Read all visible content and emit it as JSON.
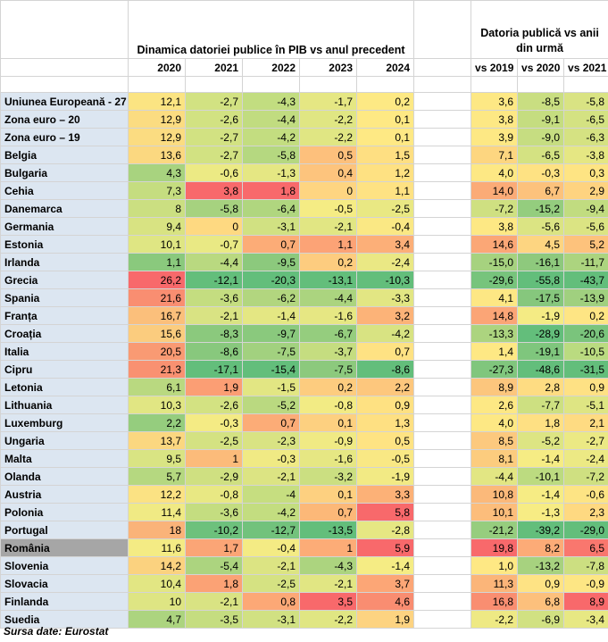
{
  "header": {
    "group1_title": "Dinamica datoriei publice în PIB vs anul precedent",
    "group2_title": "Datoria publică vs anii din urmă",
    "years": [
      "2020",
      "2021",
      "2022",
      "2023",
      "2024"
    ],
    "vs": [
      "vs 2019",
      "vs 2020",
      "vs 2021"
    ]
  },
  "rows": [
    {
      "country": "Uniunea Europeană - 27",
      "a": [
        "12,1",
        "-2,7",
        "-4,3",
        "-1,7",
        "0,2"
      ],
      "b": [
        "3,6",
        "-8,5",
        "-5,8"
      ],
      "ca": [
        "#fbe482",
        "#d2e282",
        "#c2dd80",
        "#e5e783",
        "#fde984"
      ],
      "cb": [
        "#fde884",
        "#c9de81",
        "#d9e383"
      ]
    },
    {
      "country": "Zona euro – 20",
      "a": [
        "12,9",
        "-2,6",
        "-4,4",
        "-2,2",
        "0,1"
      ],
      "b": [
        "3,8",
        "-9,1",
        "-6,5"
      ],
      "ca": [
        "#fbdc81",
        "#d2e282",
        "#c1dc80",
        "#e0e683",
        "#fee984"
      ],
      "cb": [
        "#fde884",
        "#c5dd80",
        "#d4e282"
      ]
    },
    {
      "country": "Zona euro – 19",
      "a": [
        "12,9",
        "-2,7",
        "-4,2",
        "-2,2",
        "0,1"
      ],
      "b": [
        "3,9",
        "-9,0",
        "-6,3"
      ],
      "ca": [
        "#fbdc81",
        "#d2e282",
        "#c3dd80",
        "#e0e683",
        "#fee984"
      ],
      "cb": [
        "#fde884",
        "#c6dd81",
        "#d5e282"
      ]
    },
    {
      "country": "Belgia",
      "a": [
        "13,6",
        "-2,7",
        "-5,8",
        "0,5",
        "1,5"
      ],
      "b": [
        "7,1",
        "-6,5",
        "-3,8"
      ],
      "ca": [
        "#fbd880",
        "#d2e282",
        "#b5d880",
        "#fdc07c",
        "#fedf82"
      ],
      "cb": [
        "#fdd680",
        "#d4e282",
        "#e5e783"
      ]
    },
    {
      "country": "Bulgaria",
      "a": [
        "4,3",
        "-0,6",
        "-1,3",
        "0,4",
        "1,2"
      ],
      "b": [
        "4,0",
        "-0,3",
        "0,3"
      ],
      "ca": [
        "#a8d37f",
        "#ecea84",
        "#e5e783",
        "#fdc47d",
        "#fee182"
      ],
      "cb": [
        "#fde884",
        "#fee283",
        "#fee483"
      ]
    },
    {
      "country": "Cehia",
      "a": [
        "7,3",
        "3,8",
        "1,8",
        "0",
        "1,1"
      ],
      "b": [
        "14,0",
        "6,7",
        "2,9"
      ],
      "ca": [
        "#c5dd80",
        "#f8696b",
        "#f8696b",
        "#fed581",
        "#fee283"
      ],
      "cb": [
        "#fbab77",
        "#fcc27c",
        "#fed380"
      ]
    },
    {
      "country": "Danemarca",
      "a": [
        "8",
        "-5,8",
        "-6,4",
        "-0,5",
        "-2,5"
      ],
      "b": [
        "-7,2",
        "-15,2",
        "-9,4"
      ],
      "ca": [
        "#cbdf81",
        "#a6d27f",
        "#b0d67f",
        "#f5ec84",
        "#e9e883"
      ],
      "cb": [
        "#cfe081",
        "#94cd7e",
        "#c1dc80"
      ]
    },
    {
      "country": "Germania",
      "a": [
        "9,4",
        "0",
        "-3,1",
        "-2,1",
        "-0,4"
      ],
      "b": [
        "3,8",
        "-5,6",
        "-5,6"
      ],
      "ca": [
        "#d8e382",
        "#fed981",
        "#d1e182",
        "#e1e683",
        "#fae884"
      ],
      "cb": [
        "#fde884",
        "#dbe483",
        "#dbe483"
      ]
    },
    {
      "country": "Estonia",
      "a": [
        "10,1",
        "-0,7",
        "0,7",
        "1,1",
        "3,4"
      ],
      "b": [
        "14,6",
        "4,5",
        "5,2"
      ],
      "ca": [
        "#dfe683",
        "#e9e984",
        "#fcac77",
        "#fca376",
        "#fcaf78"
      ],
      "cb": [
        "#fba776",
        "#fdd581",
        "#fdc27c"
      ]
    },
    {
      "country": "Irlanda",
      "a": [
        "1,1",
        "-4,4",
        "-9,5",
        "0,2",
        "-2,4"
      ],
      "b": [
        "-15,0",
        "-16,1",
        "-11,7"
      ],
      "ca": [
        "#8ac97d",
        "#b9d980",
        "#8cc97d",
        "#fdcc7f",
        "#eae884"
      ],
      "cb": [
        "#a6d27f",
        "#8ec97d",
        "#acd47f"
      ]
    },
    {
      "country": "Grecia",
      "a": [
        "26,2",
        "-12,1",
        "-20,3",
        "-13,1",
        "-10,3"
      ],
      "b": [
        "-29,6",
        "-55,8",
        "-43,7"
      ],
      "ca": [
        "#f8696b",
        "#63be7b",
        "#63be7b",
        "#63be7b",
        "#63be7b"
      ],
      "cb": [
        "#77c47c",
        "#63be7b",
        "#63be7b"
      ]
    },
    {
      "country": "Spania",
      "a": [
        "21,6",
        "-3,6",
        "-6,2",
        "-4,4",
        "-3,3"
      ],
      "b": [
        "4,1",
        "-17,5",
        "-13,9"
      ],
      "ca": [
        "#f98e71",
        "#c4dd80",
        "#b2d67f",
        "#abd47f",
        "#e2e683"
      ],
      "cb": [
        "#fde784",
        "#86c77d",
        "#a0d07f"
      ]
    },
    {
      "country": "Franța",
      "a": [
        "16,7",
        "-2,1",
        "-1,4",
        "-1,6",
        "3,2"
      ],
      "b": [
        "14,8",
        "-1,9",
        "0,2"
      ],
      "ca": [
        "#fbbf7b",
        "#d9e383",
        "#e4e783",
        "#e6e783",
        "#fcb378"
      ],
      "cb": [
        "#fba576",
        "#f4eb84",
        "#fee584"
      ]
    },
    {
      "country": "Croația",
      "a": [
        "15,6",
        "-8,3",
        "-9,7",
        "-6,7",
        "-4,2"
      ],
      "b": [
        "-13,3",
        "-28,9",
        "-20,6"
      ],
      "ca": [
        "#fbcc7e",
        "#8bc97d",
        "#8ac97d",
        "#95cd7e",
        "#d8e382"
      ],
      "cb": [
        "#acd47f",
        "#63be7b",
        "#7ac47c"
      ]
    },
    {
      "country": "Italia",
      "a": [
        "20,5",
        "-8,6",
        "-7,5",
        "-3,7",
        "0,7"
      ],
      "b": [
        "1,4",
        "-19,1",
        "-10,5"
      ],
      "ca": [
        "#f99a73",
        "#88c87d",
        "#a2d17f",
        "#c5dd80",
        "#fee283"
      ],
      "cb": [
        "#fee884",
        "#7fc67d",
        "#badb80"
      ]
    },
    {
      "country": "Cipru",
      "a": [
        "21,3",
        "-17,1",
        "-15,4",
        "-7,5",
        "-8,6"
      ],
      "b": [
        "-27,3",
        "-48,6",
        "-31,5"
      ],
      "ca": [
        "#f99171",
        "#63be7b",
        "#63be7b",
        "#8cc97d",
        "#63be7b"
      ],
      "cb": [
        "#80c67d",
        "#63be7b",
        "#63be7b"
      ]
    },
    {
      "country": "Letonia",
      "a": [
        "6,1",
        "1,9",
        "-1,5",
        "0,2",
        "2,2"
      ],
      "b": [
        "8,9",
        "2,8",
        "0,9"
      ],
      "ca": [
        "#b9d980",
        "#fb9e74",
        "#e2e683",
        "#fdcc7f",
        "#fdc77d"
      ],
      "cb": [
        "#fcc67d",
        "#fedc82",
        "#fee184"
      ]
    },
    {
      "country": "Lithuania",
      "a": [
        "10,3",
        "-2,6",
        "-5,2",
        "-0,8",
        "0,9"
      ],
      "b": [
        "2,6",
        "-7,7",
        "-5,1"
      ],
      "ca": [
        "#e1e683",
        "#d3e282",
        "#bad980",
        "#f2eb84",
        "#fee182"
      ],
      "cb": [
        "#fde884",
        "#cde081",
        "#dee583"
      ]
    },
    {
      "country": "Luxemburg",
      "a": [
        "2,2",
        "-0,3",
        "0,7",
        "0,1",
        "1,3"
      ],
      "b": [
        "4,0",
        "1,8",
        "2,1"
      ],
      "ca": [
        "#95cd7e",
        "#f4eb84",
        "#fcac77",
        "#fdd080",
        "#fee082"
      ],
      "cb": [
        "#fde884",
        "#fee083",
        "#fedb82"
      ]
    },
    {
      "country": "Ungaria",
      "a": [
        "13,7",
        "-2,5",
        "-2,3",
        "-0,9",
        "0,5"
      ],
      "b": [
        "8,5",
        "-5,2",
        "-2,7"
      ],
      "ca": [
        "#fbd780",
        "#d4e282",
        "#d9e383",
        "#f0ea84",
        "#fee383"
      ],
      "cb": [
        "#fcc97e",
        "#dde583",
        "#ebe984"
      ]
    },
    {
      "country": "Malta",
      "a": [
        "9,5",
        "1",
        "-0,3",
        "-1,6",
        "-0,5"
      ],
      "b": [
        "8,1",
        "-1,4",
        "-2,4"
      ],
      "ca": [
        "#d9e483",
        "#fcbb7a",
        "#f0ea84",
        "#e6e783",
        "#f9e884"
      ],
      "cb": [
        "#fccc7e",
        "#f6ec84",
        "#ece984"
      ]
    },
    {
      "country": "Olanda",
      "a": [
        "5,7",
        "-2,9",
        "-2,1",
        "-3,2",
        "-1,9"
      ],
      "b": [
        "-4,4",
        "-10,1",
        "-7,2"
      ],
      "ca": [
        "#b5d880",
        "#cfe081",
        "#dce483",
        "#cbdf81",
        "#f2ea84"
      ],
      "cb": [
        "#e2e683",
        "#bcdb80",
        "#cfe081"
      ]
    },
    {
      "country": "Austria",
      "a": [
        "12,2",
        "-0,8",
        "-4",
        "0,1",
        "3,3"
      ],
      "b": [
        "10,8",
        "-1,4",
        "-0,6"
      ],
      "ca": [
        "#fbe283",
        "#e8e883",
        "#c6de80",
        "#fdd080",
        "#fcb177"
      ],
      "cb": [
        "#fbb97a",
        "#f6ec84",
        "#fde484"
      ]
    },
    {
      "country": "Polonia",
      "a": [
        "11,4",
        "-3,6",
        "-4,2",
        "0,7",
        "5,8"
      ],
      "b": [
        "10,1",
        "-1,3",
        "2,3"
      ],
      "ca": [
        "#f0ea84",
        "#c4dd80",
        "#c3dd80",
        "#fcb878",
        "#f8696b"
      ],
      "cb": [
        "#fcbd7b",
        "#f7ec84",
        "#fed981"
      ]
    },
    {
      "country": "Portugal",
      "a": [
        "18",
        "-10,2",
        "-12,7",
        "-13,5",
        "-2,8"
      ],
      "b": [
        "-21,2",
        "-39,2",
        "-29,0"
      ],
      "ca": [
        "#fab379",
        "#6dc17c",
        "#72c27c",
        "#63be7b",
        "#e6e783"
      ],
      "cb": [
        "#96cd7e",
        "#63be7b",
        "#63be7b"
      ]
    },
    {
      "country": "România",
      "a": [
        "11,6",
        "1,7",
        "-0,4",
        "1",
        "5,9"
      ],
      "b": [
        "19,8",
        "8,2",
        "6,5"
      ],
      "ca": [
        "#f4eb84",
        "#fba576",
        "#f4eb84",
        "#fcac77",
        "#f8696b"
      ],
      "cb": [
        "#f8696b",
        "#fcab77",
        "#f9776e"
      ]
    },
    {
      "country": "Slovenia",
      "a": [
        "14,2",
        "-5,4",
        "-2,1",
        "-4,3",
        "-1,4"
      ],
      "b": [
        "1,0",
        "-13,2",
        "-7,8"
      ],
      "ca": [
        "#fbd27f",
        "#acd47f",
        "#dce483",
        "#acd47f",
        "#f5ec84"
      ],
      "cb": [
        "#fee884",
        "#a7d27f",
        "#ccdf81"
      ]
    },
    {
      "country": "Slovacia",
      "a": [
        "10,4",
        "1,8",
        "-2,5",
        "-2,1",
        "3,7"
      ],
      "b": [
        "11,3",
        "0,9",
        "-0,9"
      ],
      "ca": [
        "#e2e683",
        "#fba275",
        "#d5e282",
        "#e1e683",
        "#fca676"
      ],
      "cb": [
        "#fbb579",
        "#fee384",
        "#fde684"
      ]
    },
    {
      "country": "Finlanda",
      "a": [
        "10",
        "-2,1",
        "0,8",
        "3,5",
        "4,6"
      ],
      "b": [
        "16,8",
        "6,8",
        "8,9"
      ],
      "ca": [
        "#dee583",
        "#d9e383",
        "#fca876",
        "#f8696b",
        "#f98d71"
      ],
      "cb": [
        "#f98e71",
        "#fcc07c",
        "#f8696b"
      ]
    },
    {
      "country": "Suedia",
      "a": [
        "4,7",
        "-3,5",
        "-3,1",
        "-2,2",
        "1,9"
      ],
      "b": [
        "-2,2",
        "-6,9",
        "-3,4"
      ],
      "ca": [
        "#acd47f",
        "#c5dd80",
        "#d1e182",
        "#e0e683",
        "#fdd381"
      ],
      "cb": [
        "#eee984",
        "#d1e182",
        "#e7e883"
      ]
    }
  ],
  "source": "Sursa date: Eurostat"
}
